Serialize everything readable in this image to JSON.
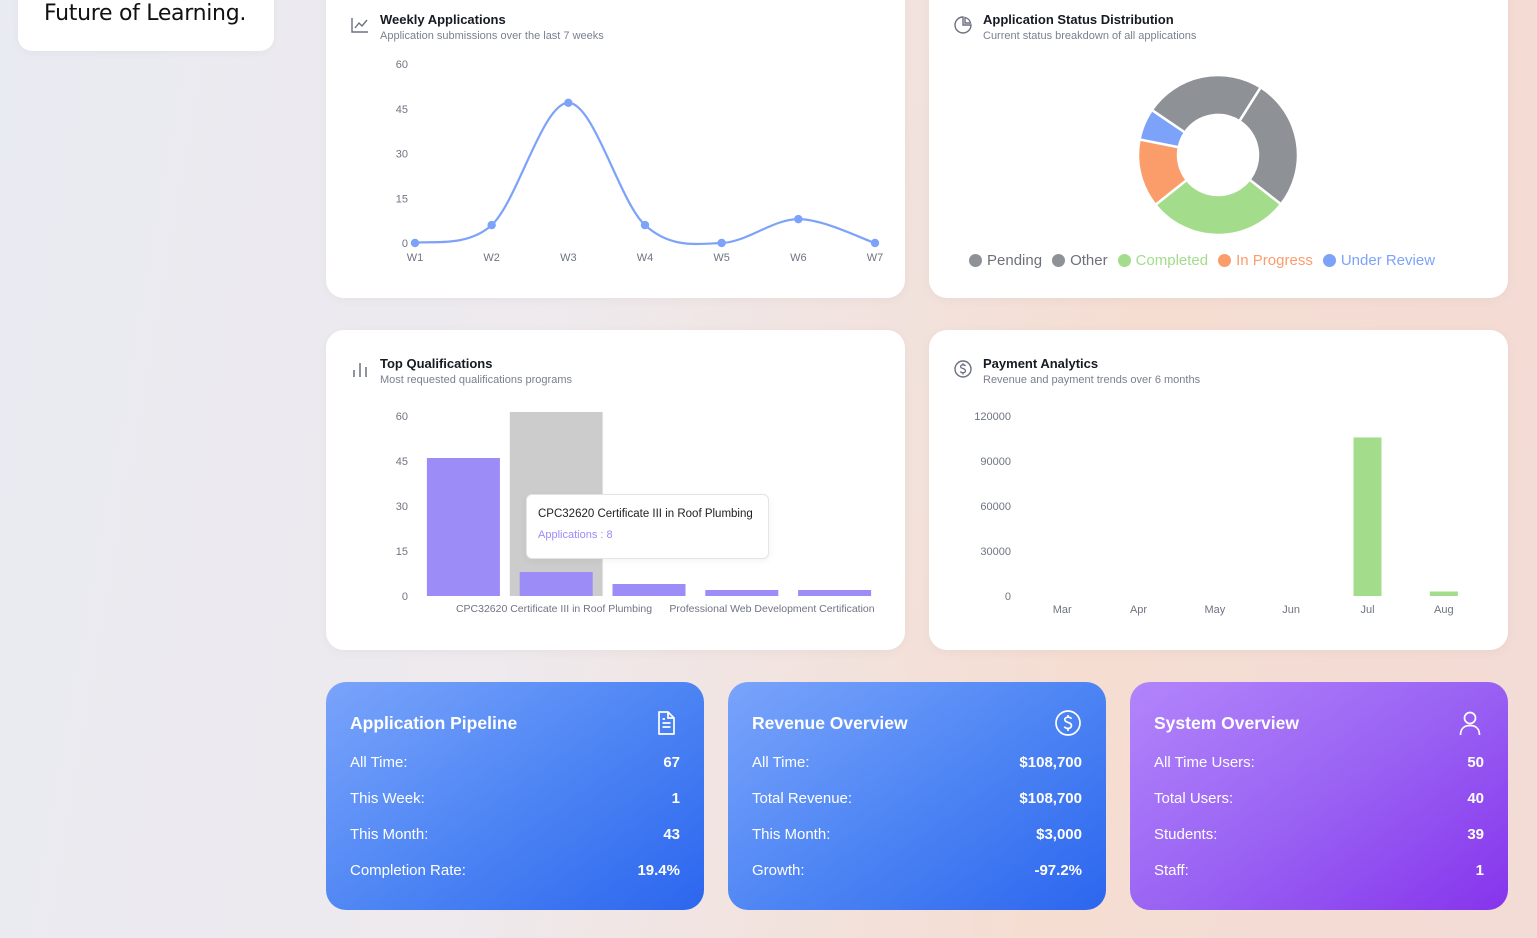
{
  "sidebar": {
    "tagline": "Future of Learning."
  },
  "weekly": {
    "title": "Weekly Applications",
    "subtitle": "Application submissions over the last 7 weeks",
    "chart_data": {
      "type": "line",
      "x": [
        "W1",
        "W2",
        "W3",
        "W4",
        "W5",
        "W6",
        "W7"
      ],
      "values": [
        0,
        6,
        47,
        6,
        0,
        8,
        0
      ],
      "yticks": [
        0,
        15,
        30,
        45,
        60
      ],
      "ylim": [
        0,
        60
      ],
      "color": "#7ca3f9"
    }
  },
  "status": {
    "title": "Application Status Distribution",
    "subtitle": "Current status breakdown of all applications",
    "chart_data": {
      "type": "pie",
      "slices": [
        {
          "name": "Pending",
          "value": 23,
          "color": "#8e9196"
        },
        {
          "name": "Other",
          "value": 25,
          "color": "#8e9196"
        },
        {
          "name": "Completed",
          "value": 27,
          "color": "#a3dc8b"
        },
        {
          "name": "In Progress",
          "value": 13,
          "color": "#fb9c6b"
        },
        {
          "name": "Under Review",
          "value": 6,
          "color": "#7ca3f9"
        }
      ]
    },
    "legend": [
      {
        "label": "Pending",
        "color": "#8e9196"
      },
      {
        "label": "Other",
        "color": "#8e9196"
      },
      {
        "label": "Completed",
        "color": "#a3dc8b"
      },
      {
        "label": "In Progress",
        "color": "#fb9c6b"
      },
      {
        "label": "Under Review",
        "color": "#7ca3f9"
      }
    ]
  },
  "qualifications": {
    "title": "Top Qualifications",
    "subtitle": "Most requested qualifications programs",
    "chart_data": {
      "type": "bar",
      "values": [
        46,
        8,
        4,
        2,
        2
      ],
      "xtick_labels": [
        "CPC32620 Certificate III in Roof Plumbing",
        "Professional Web Development Certification"
      ],
      "yticks": [
        0,
        15,
        30,
        45,
        60
      ],
      "ylim": [
        0,
        60
      ],
      "color": "#9b8cf7",
      "highlight_index": 1
    },
    "tooltip": {
      "title": "CPC32620 Certificate III in Roof Plumbing",
      "value": "Applications : 8"
    }
  },
  "payments": {
    "title": "Payment Analytics",
    "subtitle": "Revenue and payment trends over 6 months",
    "chart_data": {
      "type": "bar",
      "categories": [
        "Mar",
        "Apr",
        "May",
        "Jun",
        "Jul",
        "Aug"
      ],
      "values": [
        0,
        0,
        0,
        0,
        105700,
        3000
      ],
      "yticks": [
        0,
        30000,
        60000,
        90000,
        120000
      ],
      "ylim": [
        0,
        120000
      ],
      "color": "#a3dc8b"
    }
  },
  "pipeline": {
    "title": "Application Pipeline",
    "rows": [
      {
        "label": "All Time:",
        "value": "67"
      },
      {
        "label": "This Week:",
        "value": "1"
      },
      {
        "label": "This Month:",
        "value": "43"
      },
      {
        "label": "Completion Rate:",
        "value": "19.4%"
      }
    ]
  },
  "revenue": {
    "title": "Revenue Overview",
    "rows": [
      {
        "label": "All Time:",
        "value": "$108,700"
      },
      {
        "label": "Total Revenue:",
        "value": "$108,700"
      },
      {
        "label": "This Month:",
        "value": "$3,000"
      },
      {
        "label": "Growth:",
        "value": "-97.2%"
      }
    ]
  },
  "system": {
    "title": "System Overview",
    "rows": [
      {
        "label": "All Time Users:",
        "value": "50"
      },
      {
        "label": "Total Users:",
        "value": "40"
      },
      {
        "label": "Students:",
        "value": "39"
      },
      {
        "label": "Staff:",
        "value": "1"
      }
    ]
  }
}
